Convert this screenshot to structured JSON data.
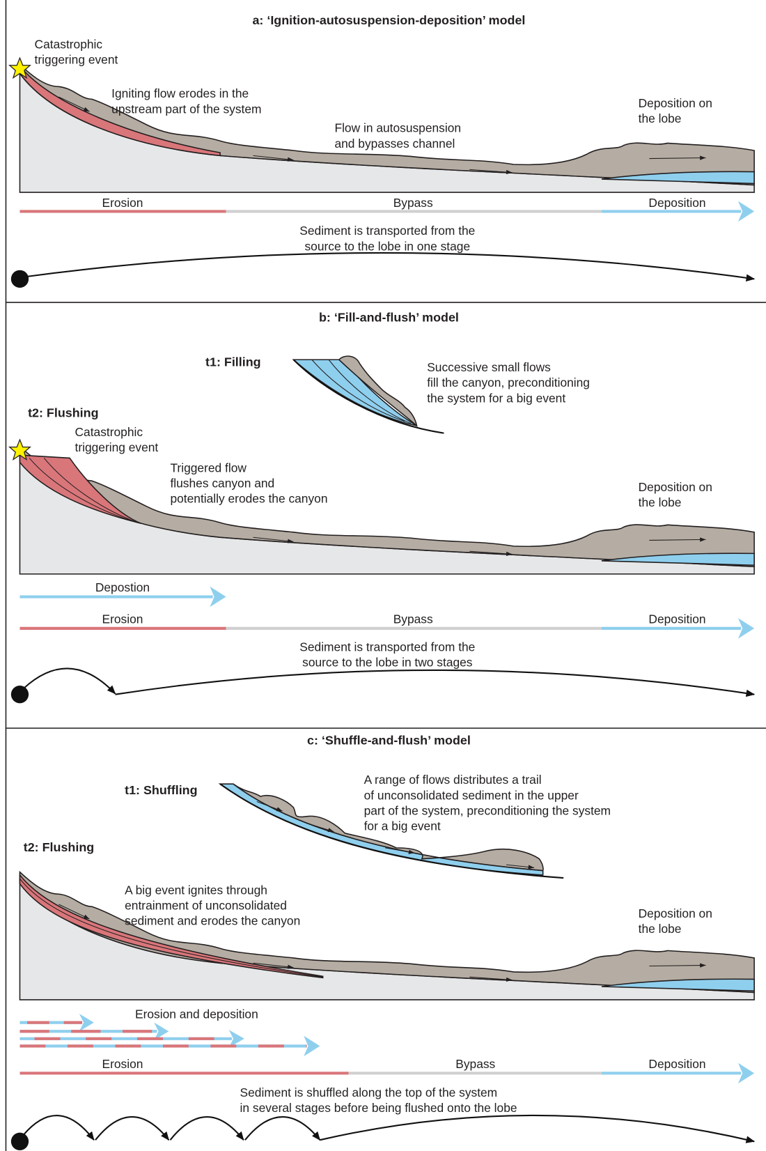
{
  "panels": [
    {
      "title": "a: ‘Ignition-autosuspension-deposition’ model",
      "annotations": [
        [
          "Catastrophic",
          "triggering event"
        ],
        [
          "Igniting flow erodes in the",
          "upstream part of the system"
        ],
        [
          "Flow in autosuspension",
          "and bypasses channel"
        ],
        [
          "Deposition on",
          "the lobe"
        ]
      ],
      "zones": [
        "Erosion",
        "Bypass",
        "Deposition"
      ],
      "summary": [
        "Sediment is transported from the",
        "source to the lobe in one stage"
      ]
    },
    {
      "title": "b: ‘Fill-and-flush’ model",
      "stage1": "t1: Filling",
      "stage2": "t2: Flushing",
      "annotations": [
        [
          "Successive small flows",
          "fill the canyon, preconditioning",
          "the system for a big event"
        ],
        [
          "Catastrophic",
          "triggering event"
        ],
        [
          "Triggered flow",
          "flushes canyon and",
          "potentially erodes the canyon"
        ],
        [
          "Deposition on",
          "the lobe"
        ]
      ],
      "extra_label": "Depostion",
      "zones": [
        "Erosion",
        "Bypass",
        "Deposition"
      ],
      "summary": [
        "Sediment is transported from the",
        "source to the lobe in two stages"
      ]
    },
    {
      "title": "c: ‘Shuffle-and-flush’ model",
      "stage1": "t1: Shuffling",
      "stage2": "t2: Flushing",
      "annotations": [
        [
          "A range of flows distributes a trail",
          "of unconsolidated sediment in the upper",
          "part of the system, preconditioning the system",
          "for a big event"
        ],
        [
          "A big event ignites through",
          "entrainment of unconsolidated",
          "sediment and erodes the canyon"
        ],
        [
          "Deposition on",
          "the lobe"
        ]
      ],
      "extra_label": "Erosion and deposition",
      "zones": [
        "Erosion",
        "Bypass",
        "Deposition"
      ],
      "summary": [
        "Sediment is shuffled along the top of the system",
        "in several stages before being flushed onto the lobe"
      ]
    }
  ]
}
